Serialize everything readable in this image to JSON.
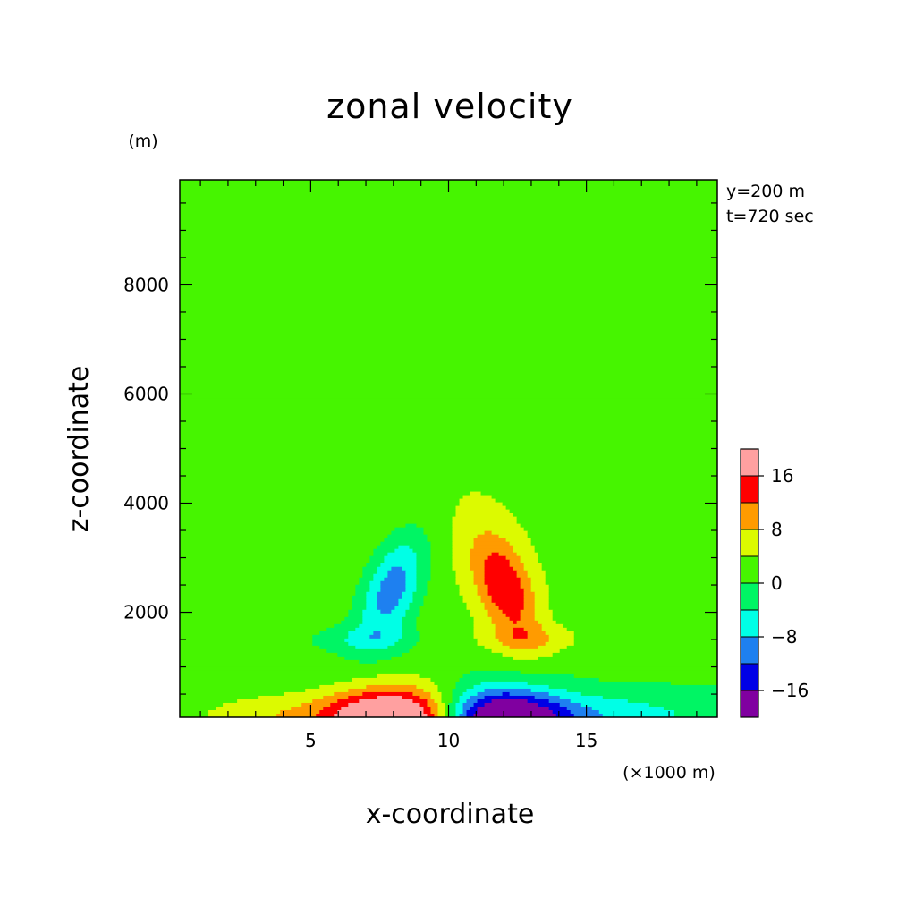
{
  "chart_data": {
    "type": "heatmap",
    "title": "zonal velocity",
    "annotations": [
      "y=200 m",
      "t=720 sec"
    ],
    "xlabel": "x-coordinate",
    "ylabel": "z-coordinate",
    "x_unit": "(×1000 m)",
    "y_unit": "(m)",
    "xlim": [
      0.25,
      19.75
    ],
    "ylim": [
      75,
      9925
    ],
    "x_ticks": [
      5,
      10,
      15
    ],
    "y_ticks": [
      2000,
      4000,
      6000,
      8000
    ],
    "grid": false,
    "colorbar": {
      "levels": [
        -20,
        -16,
        -12,
        -8,
        -4,
        0,
        4,
        8,
        12,
        16,
        20
      ],
      "labels": [
        "-16",
        "-8",
        "0",
        "8",
        "16"
      ],
      "label_values": [
        -16,
        -8,
        0,
        8,
        16
      ],
      "colors": [
        "#8000a0",
        "#0000e6",
        "#1e80f0",
        "#00ffe6",
        "#00f564",
        "#46f500",
        "#dcfa00",
        "#ff9b00",
        "#ff0000",
        "#ffa0a0"
      ]
    }
  }
}
